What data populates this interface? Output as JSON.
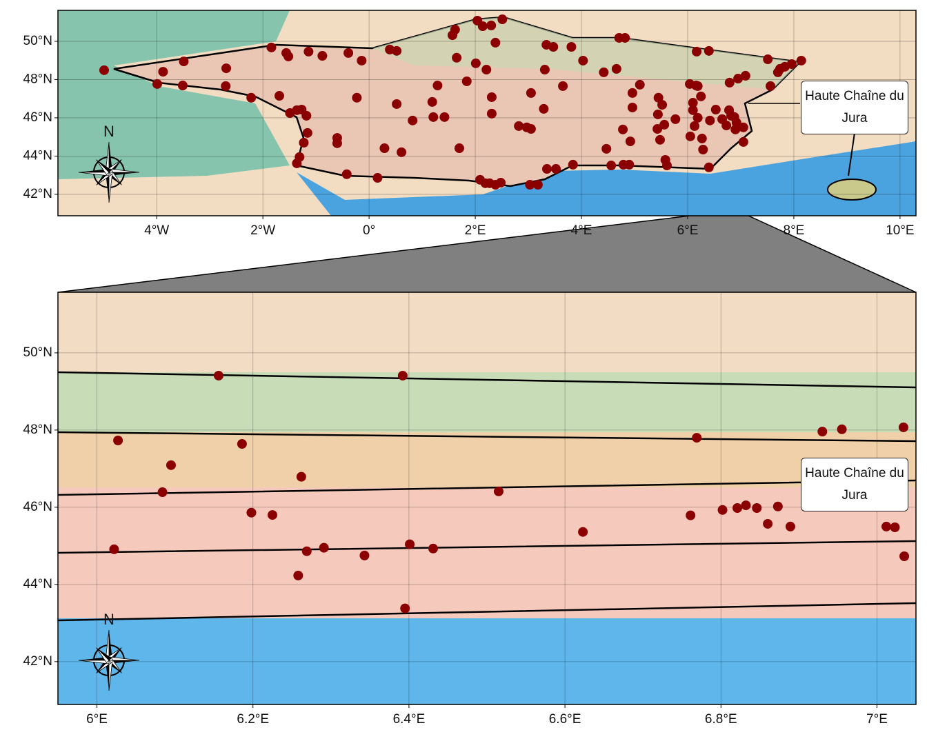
{
  "chart_data": [
    {
      "type": "scatter",
      "color": "#8b0000",
      "grid": true,
      "compass_label": "N",
      "annotation": "Haute Chaîne du Jura",
      "xlim": [
        -5.86,
        10.3
      ],
      "ylim": [
        40.88,
        51.62
      ],
      "xticks": [
        {
          "value": -4,
          "label": "4°W"
        },
        {
          "value": -2,
          "label": "2°W"
        },
        {
          "value": 0,
          "label": "0°"
        },
        {
          "value": 2,
          "label": "2°E"
        },
        {
          "value": 4,
          "label": "4°E"
        },
        {
          "value": 6,
          "label": "6°E"
        },
        {
          "value": 8,
          "label": "8°E"
        },
        {
          "value": 10,
          "label": "10°E"
        }
      ],
      "yticks": [
        {
          "value": 42,
          "label": "42°N"
        },
        {
          "value": 44,
          "label": "44°N"
        },
        {
          "value": 46,
          "label": "46°N"
        },
        {
          "value": 48,
          "label": "48°N"
        },
        {
          "value": 50,
          "label": "50°N"
        }
      ],
      "x": [
        -4.99,
        -3.88,
        -3.99,
        -3.49,
        -3.51,
        -2.69,
        -2.7,
        -2.22,
        -1.69,
        -1.84,
        -1.56,
        -1.52,
        -1.14,
        -0.88,
        -0.39,
        -0.14,
        0.39,
        0.52,
        1.62,
        1.57,
        1.65,
        2.04,
        2.14,
        2.3,
        2.51,
        2.38,
        2.01,
        2.21,
        1.84,
        1.29,
        -0.23,
        0.52,
        1.19,
        1.42,
        0.82,
        1.7,
        0.29,
        0.61,
        0.16,
        -0.42,
        -0.6,
        -0.6,
        -1.49,
        -1.36,
        -1.27,
        -1.18,
        -1.16,
        -1.23,
        -1.31,
        -1.36,
        2.48,
        2.09,
        2.19,
        2.27,
        2.38,
        3.03,
        3.18,
        3.35,
        3.52,
        3.84,
        4.56,
        4.79,
        4.9,
        4.47,
        4.78,
        4.92,
        4.96,
        4.96,
        5.1,
        5.45,
        5.52,
        5.43,
        5.48,
        5.58,
        5.61,
        6.4,
        6.29,
        6.27,
        6.05,
        6.13,
        6.19,
        6.42,
        5.77,
        5.56,
        5.44,
        6.1,
        6.25,
        6.1,
        6.16,
        6.04,
        6.19,
        6.53,
        6.73,
        6.65,
        6.82,
        6.92,
        6.9,
        7.05,
        7.05,
        6.78,
        6.88,
        6.79,
        6.95,
        7.09,
        7.56,
        7.51,
        7.7,
        7.74,
        7.83,
        7.96,
        8.14,
        3.05,
        3.29,
        3.65,
        3.31,
        3.34,
        3.47,
        3.81,
        4.03,
        4.42,
        4.66,
        4.71,
        4.82,
        6.17,
        6.4,
        2.82,
        2.97,
        3.05,
        2.31,
        2.31,
        1.21
      ],
      "values": [
        48.49,
        48.41,
        47.77,
        48.95,
        47.69,
        48.59,
        47.66,
        47.05,
        47.15,
        49.68,
        49.39,
        49.21,
        49.46,
        49.24,
        49.39,
        48.99,
        49.57,
        49.5,
        50.61,
        50.32,
        49.14,
        51.08,
        50.79,
        50.83,
        51.15,
        49.93,
        48.85,
        48.52,
        47.91,
        47.69,
        47.05,
        46.72,
        46.83,
        46.04,
        45.86,
        44.41,
        44.41,
        44.2,
        42.86,
        43.05,
        44.95,
        44.67,
        46.25,
        46.4,
        46.43,
        46.11,
        45.21,
        44.7,
        43.95,
        43.62,
        42.61,
        42.76,
        42.58,
        42.58,
        42.5,
        42.5,
        42.5,
        43.33,
        43.33,
        43.55,
        43.51,
        43.55,
        43.55,
        44.38,
        45.39,
        44.77,
        46.54,
        47.3,
        47.73,
        47.05,
        46.68,
        45.42,
        44.85,
        43.8,
        43.51,
        43.41,
        44.34,
        44.92,
        45.03,
        45.57,
        46.0,
        45.86,
        45.93,
        45.64,
        46.18,
        46.4,
        47.12,
        46.79,
        47.69,
        47.77,
        47.66,
        46.43,
        45.6,
        45.93,
        46.11,
        45.75,
        45.39,
        45.5,
        44.74,
        46.4,
        46.04,
        47.84,
        48.05,
        48.2,
        47.66,
        49.06,
        48.38,
        48.56,
        48.67,
        48.81,
        48.99,
        47.3,
        46.47,
        47.66,
        48.52,
        49.82,
        49.71,
        49.71,
        48.99,
        48.38,
        48.56,
        50.18,
        50.18,
        49.46,
        49.5,
        45.57,
        45.5,
        45.42,
        46.22,
        47.08,
        46.04
      ]
    },
    {
      "type": "scatter",
      "color": "#8b0000",
      "grid": true,
      "compass_label": "N",
      "annotation": "Haute Chaîne du Jura",
      "xlim": [
        5.95,
        7.05
      ],
      "ylim": [
        40.89,
        51.57
      ],
      "xticks": [
        {
          "value": 6,
          "label": "6°E"
        },
        {
          "value": 6.2,
          "label": "6.2°E"
        },
        {
          "value": 6.4,
          "label": "6.4°E"
        },
        {
          "value": 6.6,
          "label": "6.6°E"
        },
        {
          "value": 6.8,
          "label": "6.8°E"
        },
        {
          "value": 7,
          "label": "7°E"
        }
      ],
      "yticks": [
        {
          "value": 42,
          "label": "42°N"
        },
        {
          "value": 44,
          "label": "44°N"
        },
        {
          "value": 46,
          "label": "46°N"
        },
        {
          "value": 48,
          "label": "48°N"
        },
        {
          "value": 50,
          "label": "50°N"
        }
      ],
      "x": [
        6.156,
        6.392,
        6.027,
        6.186,
        6.095,
        6.262,
        6.084,
        6.515,
        6.198,
        6.225,
        6.022,
        6.269,
        6.291,
        6.343,
        6.401,
        6.431,
        6.258,
        6.395,
        6.623,
        6.761,
        6.769,
        6.802,
        6.821,
        6.832,
        6.846,
        6.873,
        6.86,
        6.889,
        6.93,
        6.955,
        7.034,
        7.012,
        7.023,
        7.035
      ],
      "values": [
        49.41,
        49.41,
        47.73,
        47.64,
        47.09,
        46.79,
        46.39,
        46.41,
        45.86,
        45.8,
        44.91,
        44.86,
        44.95,
        44.75,
        45.04,
        44.93,
        44.23,
        43.38,
        45.36,
        45.79,
        47.8,
        45.93,
        45.98,
        46.05,
        45.98,
        46.02,
        45.57,
        45.5,
        47.96,
        48.02,
        48.07,
        45.5,
        45.48,
        44.73
      ]
    }
  ]
}
